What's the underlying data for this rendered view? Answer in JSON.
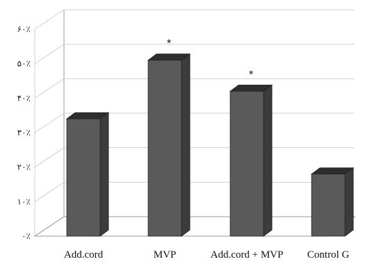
{
  "chart_data": {
    "type": "bar",
    "style": "3d-column",
    "categories": [
      "Add.cord",
      "MVP",
      "Add.cord + MVP",
      "Control G"
    ],
    "values": [
      34,
      51,
      42,
      18
    ],
    "annotations": [
      "",
      "*",
      "*",
      ""
    ],
    "ylim": [
      0,
      60
    ],
    "yticks": [
      0,
      10,
      20,
      30,
      40,
      50,
      60
    ],
    "ytick_labels": [
      "۰٪",
      "۱۰٪",
      "۲۰٪",
      "۳۰٪",
      "۴۰٪",
      "۵۰٪",
      "۶۰٪"
    ],
    "title": "",
    "xlabel": "",
    "ylabel": "",
    "grid": true,
    "legend": "none"
  },
  "colors": {
    "bar_front": "#5a5a5a",
    "bar_side": "#3c3c3c",
    "bar_top": "#2e2e2e",
    "grid": "#d0d0d0",
    "axis": "#9a9a9a"
  }
}
